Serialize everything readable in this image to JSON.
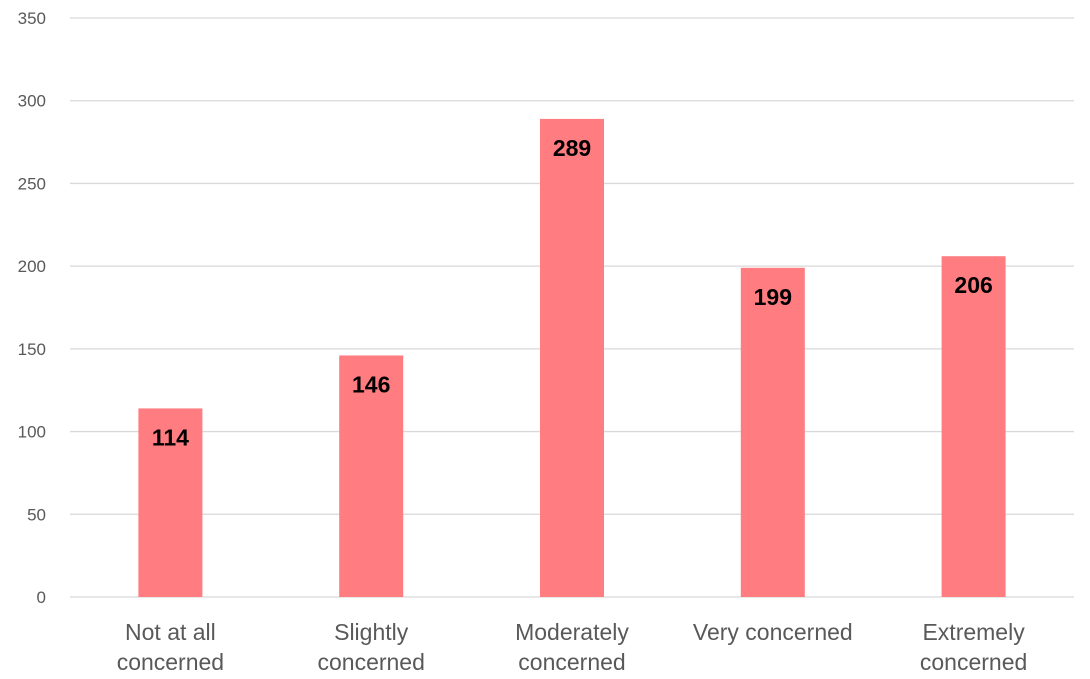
{
  "chart_data": {
    "type": "bar",
    "categories": [
      [
        "Not at all",
        "concerned"
      ],
      [
        "Slightly",
        "concerned"
      ],
      [
        "Moderately",
        "concerned"
      ],
      [
        "Very concerned"
      ],
      [
        "Extremely",
        "concerned"
      ]
    ],
    "values": [
      114,
      146,
      289,
      199,
      206
    ],
    "data_labels": [
      "114",
      "146",
      "289",
      "199",
      "206"
    ],
    "yticks": [
      0,
      50,
      100,
      150,
      200,
      250,
      300,
      350
    ],
    "ylim": [
      0,
      350
    ],
    "grid": true,
    "legend": "none",
    "title": "",
    "xlabel": "",
    "ylabel": "",
    "colors": {
      "bar": "#ff7c80",
      "grid": "#d9d9d9",
      "tick_text": "#595959",
      "data_label": "#000000"
    }
  }
}
